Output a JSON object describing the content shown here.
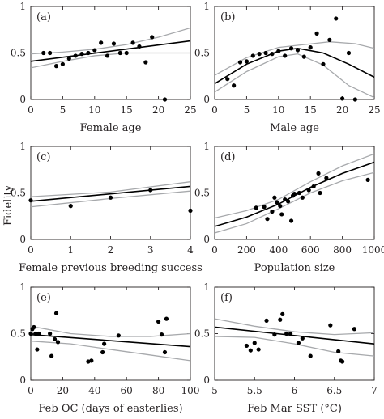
{
  "figure": {
    "shared_ylabel": "Fidelity"
  },
  "chart_data": [
    {
      "type": "scatter",
      "panel": "(a)",
      "xlabel": "Female age",
      "xlim": [
        0,
        25
      ],
      "ylim": [
        0,
        1
      ],
      "xticks": [
        0,
        5,
        10,
        15,
        20,
        25
      ],
      "yticks": [
        0,
        0.5,
        1
      ],
      "points": [
        [
          2,
          0.5
        ],
        [
          3,
          0.5
        ],
        [
          4,
          0.36
        ],
        [
          5,
          0.38
        ],
        [
          6,
          0.44
        ],
        [
          7,
          0.47
        ],
        [
          8,
          0.49
        ],
        [
          9,
          0.5
        ],
        [
          10,
          0.53
        ],
        [
          11,
          0.61
        ],
        [
          12,
          0.47
        ],
        [
          13,
          0.6
        ],
        [
          14,
          0.5
        ],
        [
          15,
          0.5
        ],
        [
          16,
          0.61
        ],
        [
          17,
          0.57
        ],
        [
          18,
          0.4
        ],
        [
          19,
          0.67
        ],
        [
          21,
          0.0
        ]
      ],
      "fit": [
        [
          0,
          0.41
        ],
        [
          25,
          0.63
        ]
      ],
      "ci_upper": [
        [
          0,
          0.49
        ],
        [
          5,
          0.51
        ],
        [
          10,
          0.54
        ],
        [
          15,
          0.59
        ],
        [
          20,
          0.67
        ],
        [
          25,
          0.77
        ]
      ],
      "ci_lower": [
        [
          0,
          0.34
        ],
        [
          5,
          0.41
        ],
        [
          10,
          0.47
        ],
        [
          15,
          0.5
        ],
        [
          20,
          0.5
        ],
        [
          25,
          0.5
        ]
      ]
    },
    {
      "type": "scatter",
      "panel": "(b)",
      "xlabel": "Male age",
      "xlim": [
        0,
        25
      ],
      "ylim": [
        0,
        1
      ],
      "xticks": [
        0,
        5,
        10,
        15,
        20,
        25
      ],
      "yticks": [
        0,
        0.5,
        1
      ],
      "points": [
        [
          2,
          0.22
        ],
        [
          3,
          0.15
        ],
        [
          4,
          0.4
        ],
        [
          5,
          0.41
        ],
        [
          6,
          0.47
        ],
        [
          7,
          0.49
        ],
        [
          8,
          0.5
        ],
        [
          9,
          0.49
        ],
        [
          10,
          0.52
        ],
        [
          11,
          0.47
        ],
        [
          12,
          0.55
        ],
        [
          13,
          0.53
        ],
        [
          14,
          0.46
        ],
        [
          15,
          0.56
        ],
        [
          16,
          0.71
        ],
        [
          17,
          0.38
        ],
        [
          18,
          0.64
        ],
        [
          19,
          0.87
        ],
        [
          20,
          0.01
        ],
        [
          21,
          0.5
        ],
        [
          22,
          0.0
        ]
      ],
      "fit": [
        [
          0,
          0.17
        ],
        [
          5,
          0.38
        ],
        [
          10,
          0.52
        ],
        [
          13,
          0.55
        ],
        [
          17,
          0.5
        ],
        [
          21,
          0.38
        ],
        [
          25,
          0.24
        ]
      ],
      "ci_upper": [
        [
          0,
          0.26
        ],
        [
          5,
          0.45
        ],
        [
          10,
          0.56
        ],
        [
          14,
          0.59
        ],
        [
          18,
          0.62
        ],
        [
          22,
          0.6
        ],
        [
          25,
          0.55
        ]
      ],
      "ci_lower": [
        [
          0,
          0.08
        ],
        [
          5,
          0.3
        ],
        [
          10,
          0.46
        ],
        [
          13,
          0.49
        ],
        [
          17,
          0.37
        ],
        [
          21,
          0.15
        ],
        [
          25,
          0.02
        ]
      ]
    },
    {
      "type": "scatter",
      "panel": "(c)",
      "xlabel": "Female previous breeding success",
      "xlim": [
        0,
        4
      ],
      "ylim": [
        0,
        1
      ],
      "xticks": [
        0,
        1,
        2,
        3,
        4
      ],
      "yticks": [
        0,
        0.5,
        1
      ],
      "points": [
        [
          0,
          0.42
        ],
        [
          1,
          0.36
        ],
        [
          2,
          0.45
        ],
        [
          3,
          0.53
        ],
        [
          4,
          0.31
        ]
      ],
      "fit": [
        [
          0,
          0.41
        ],
        [
          4,
          0.57
        ]
      ],
      "ci_upper": [
        [
          0,
          0.46
        ],
        [
          2,
          0.51
        ],
        [
          4,
          0.62
        ]
      ],
      "ci_lower": [
        [
          0,
          0.35
        ],
        [
          2,
          0.44
        ],
        [
          4,
          0.52
        ]
      ]
    },
    {
      "type": "scatter",
      "panel": "(d)",
      "xlabel": "Population size",
      "xlim": [
        0,
        1000
      ],
      "ylim": [
        0,
        1
      ],
      "xticks": [
        0,
        200,
        400,
        600,
        800,
        1000
      ],
      "yticks": [
        0,
        0.5,
        1
      ],
      "points": [
        [
          260,
          0.34
        ],
        [
          310,
          0.35
        ],
        [
          330,
          0.22
        ],
        [
          360,
          0.3
        ],
        [
          375,
          0.45
        ],
        [
          390,
          0.4
        ],
        [
          410,
          0.36
        ],
        [
          420,
          0.27
        ],
        [
          440,
          0.43
        ],
        [
          460,
          0.41
        ],
        [
          480,
          0.2
        ],
        [
          490,
          0.47
        ],
        [
          500,
          0.49
        ],
        [
          530,
          0.5
        ],
        [
          550,
          0.45
        ],
        [
          590,
          0.53
        ],
        [
          620,
          0.57
        ],
        [
          650,
          0.71
        ],
        [
          660,
          0.5
        ],
        [
          700,
          0.66
        ],
        [
          960,
          0.64
        ]
      ],
      "fit": [
        [
          0,
          0.14
        ],
        [
          200,
          0.24
        ],
        [
          400,
          0.38
        ],
        [
          600,
          0.56
        ],
        [
          800,
          0.71
        ],
        [
          1000,
          0.83
        ]
      ],
      "ci_upper": [
        [
          0,
          0.23
        ],
        [
          200,
          0.31
        ],
        [
          400,
          0.43
        ],
        [
          600,
          0.62
        ],
        [
          800,
          0.79
        ],
        [
          1000,
          0.92
        ]
      ],
      "ci_lower": [
        [
          0,
          0.07
        ],
        [
          200,
          0.17
        ],
        [
          400,
          0.33
        ],
        [
          600,
          0.5
        ],
        [
          800,
          0.63
        ],
        [
          1000,
          0.72
        ]
      ]
    },
    {
      "type": "scatter",
      "panel": "(e)",
      "xlabel": "Feb OC (days of easterlies)",
      "xlim": [
        0,
        100
      ],
      "ylim": [
        0,
        1
      ],
      "xticks": [
        0,
        20,
        40,
        60,
        80,
        100
      ],
      "yticks": [
        0,
        0.5,
        1
      ],
      "points": [
        [
          0,
          0.5
        ],
        [
          1,
          0.55
        ],
        [
          2,
          0.57
        ],
        [
          3,
          0.5
        ],
        [
          4,
          0.33
        ],
        [
          5,
          0.5
        ],
        [
          12,
          0.5
        ],
        [
          13,
          0.26
        ],
        [
          15,
          0.44
        ],
        [
          16,
          0.72
        ],
        [
          17,
          0.41
        ],
        [
          36,
          0.2
        ],
        [
          38,
          0.21
        ],
        [
          45,
          0.3
        ],
        [
          46,
          0.39
        ],
        [
          55,
          0.48
        ],
        [
          80,
          0.63
        ],
        [
          82,
          0.49
        ],
        [
          84,
          0.3
        ],
        [
          85,
          0.66
        ]
      ],
      "fit": [
        [
          0,
          0.49
        ],
        [
          100,
          0.36
        ]
      ],
      "ci_upper": [
        [
          0,
          0.58
        ],
        [
          25,
          0.5
        ],
        [
          50,
          0.47
        ],
        [
          75,
          0.47
        ],
        [
          100,
          0.5
        ]
      ],
      "ci_lower": [
        [
          0,
          0.42
        ],
        [
          25,
          0.39
        ],
        [
          50,
          0.33
        ],
        [
          75,
          0.27
        ],
        [
          100,
          0.21
        ]
      ]
    },
    {
      "type": "scatter",
      "panel": "(f)",
      "xlabel": "Feb Mar SST (°C)",
      "xlim": [
        5,
        7
      ],
      "ylim": [
        0,
        1
      ],
      "xticks": [
        5,
        5.5,
        6,
        6.5,
        7
      ],
      "yticks": [
        0,
        0.5,
        1
      ],
      "points": [
        [
          5.4,
          0.37
        ],
        [
          5.45,
          0.32
        ],
        [
          5.5,
          0.4
        ],
        [
          5.55,
          0.33
        ],
        [
          5.65,
          0.64
        ],
        [
          5.75,
          0.49
        ],
        [
          5.82,
          0.65
        ],
        [
          5.85,
          0.71
        ],
        [
          5.9,
          0.5
        ],
        [
          5.95,
          0.5
        ],
        [
          6.05,
          0.4
        ],
        [
          6.1,
          0.45
        ],
        [
          6.2,
          0.26
        ],
        [
          6.45,
          0.59
        ],
        [
          6.55,
          0.31
        ],
        [
          6.58,
          0.21
        ],
        [
          6.6,
          0.2
        ],
        [
          6.75,
          0.55
        ]
      ],
      "fit": [
        [
          5,
          0.57
        ],
        [
          7,
          0.39
        ]
      ],
      "ci_upper": [
        [
          5,
          0.66
        ],
        [
          5.5,
          0.58
        ],
        [
          6,
          0.52
        ],
        [
          6.5,
          0.49
        ],
        [
          7,
          0.51
        ]
      ],
      "ci_lower": [
        [
          5,
          0.47
        ],
        [
          5.5,
          0.46
        ],
        [
          6,
          0.39
        ],
        [
          6.5,
          0.3
        ],
        [
          7,
          0.26
        ]
      ]
    }
  ]
}
